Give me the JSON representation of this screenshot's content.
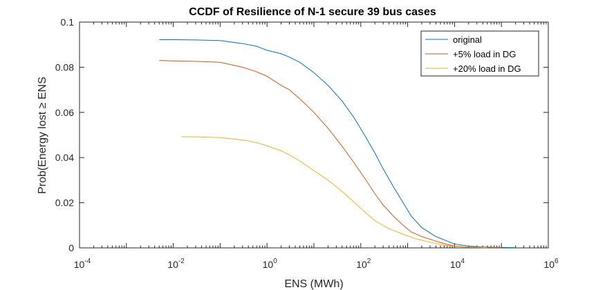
{
  "chart_data": {
    "type": "line",
    "title": "CCDF of Resilience of N-1 secure 39 bus cases",
    "xlabel": "ENS (MWh)",
    "ylabel": "Prob(Energy lost ≥ ENS",
    "xscale": "log",
    "xlim": [
      0.0001,
      1000000
    ],
    "ylim": [
      0,
      0.1
    ],
    "legend_position": "top-right",
    "grid": false,
    "x_ticks": [
      {
        "base": "10",
        "exp": "-4"
      },
      {
        "base": "10",
        "exp": "-2"
      },
      {
        "base": "10",
        "exp": "0"
      },
      {
        "base": "10",
        "exp": "2"
      },
      {
        "base": "10",
        "exp": "4"
      },
      {
        "base": "10",
        "exp": "6"
      }
    ],
    "y_ticks": [
      "0",
      "0.02",
      "0.04",
      "0.06",
      "0.08",
      "0.1"
    ],
    "series": [
      {
        "name": "original",
        "color": "#0072BD",
        "points": [
          [
            0.005,
            0.0922
          ],
          [
            0.01,
            0.0922
          ],
          [
            0.03,
            0.0921
          ],
          [
            0.1,
            0.0918
          ],
          [
            0.3,
            0.0905
          ],
          [
            0.6,
            0.0893
          ],
          [
            1,
            0.0875
          ],
          [
            2,
            0.086
          ],
          [
            3,
            0.0845
          ],
          [
            5,
            0.0822
          ],
          [
            10,
            0.0776
          ],
          [
            20,
            0.072
          ],
          [
            40,
            0.065
          ],
          [
            70,
            0.058
          ],
          [
            120,
            0.05
          ],
          [
            200,
            0.042
          ],
          [
            300,
            0.035
          ],
          [
            500,
            0.027
          ],
          [
            800,
            0.02
          ],
          [
            1200,
            0.014
          ],
          [
            2000,
            0.009
          ],
          [
            4000,
            0.005
          ],
          [
            7000,
            0.003
          ],
          [
            10000,
            0.0017
          ],
          [
            20000,
            0.0008
          ],
          [
            40000,
            0.0004
          ],
          [
            100000,
            0.0002
          ],
          [
            200000,
            0.0001
          ]
        ]
      },
      {
        "name": "+5% load in DG",
        "color": "#D95319",
        "points": [
          [
            0.005,
            0.083
          ],
          [
            0.01,
            0.0828
          ],
          [
            0.03,
            0.0826
          ],
          [
            0.1,
            0.0822
          ],
          [
            0.3,
            0.08
          ],
          [
            0.6,
            0.078
          ],
          [
            1,
            0.076
          ],
          [
            2,
            0.072
          ],
          [
            3,
            0.07
          ],
          [
            5,
            0.066
          ],
          [
            10,
            0.06
          ],
          [
            20,
            0.053
          ],
          [
            40,
            0.045
          ],
          [
            70,
            0.038
          ],
          [
            120,
            0.031
          ],
          [
            200,
            0.024
          ],
          [
            300,
            0.019
          ],
          [
            500,
            0.014
          ],
          [
            800,
            0.01
          ],
          [
            1200,
            0.007
          ],
          [
            2000,
            0.005
          ],
          [
            4000,
            0.003
          ],
          [
            7000,
            0.0015
          ],
          [
            10000,
            0.0008
          ],
          [
            20000,
            0.0004
          ],
          [
            40000,
            0.0002
          ],
          [
            100000,
            0.0001
          ]
        ]
      },
      {
        "name": "+20% load in DG",
        "color": "#EDB120",
        "points": [
          [
            0.015,
            0.0492
          ],
          [
            0.03,
            0.0492
          ],
          [
            0.06,
            0.049
          ],
          [
            0.1,
            0.0488
          ],
          [
            0.2,
            0.0482
          ],
          [
            0.4,
            0.0474
          ],
          [
            0.7,
            0.0462
          ],
          [
            1,
            0.0452
          ],
          [
            2,
            0.043
          ],
          [
            3,
            0.0412
          ],
          [
            5,
            0.0385
          ],
          [
            10,
            0.0342
          ],
          [
            20,
            0.03
          ],
          [
            40,
            0.025
          ],
          [
            70,
            0.0205
          ],
          [
            120,
            0.016
          ],
          [
            200,
            0.012
          ],
          [
            400,
            0.0085
          ],
          [
            800,
            0.006
          ],
          [
            1500,
            0.004
          ],
          [
            3000,
            0.0025
          ],
          [
            6000,
            0.0012
          ],
          [
            10000,
            0.0006
          ],
          [
            20000,
            0.0003
          ],
          [
            50000,
            0.0001
          ]
        ]
      }
    ]
  }
}
